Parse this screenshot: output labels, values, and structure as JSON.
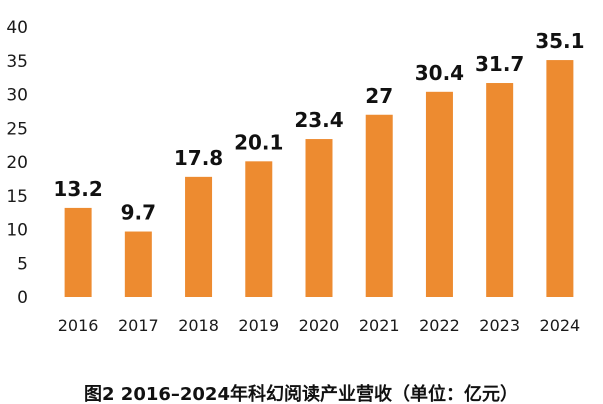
{
  "chart_data": {
    "type": "bar",
    "categories": [
      "2016",
      "2017",
      "2018",
      "2019",
      "2020",
      "2021",
      "2022",
      "2023",
      "2024"
    ],
    "values": [
      13.2,
      9.7,
      17.8,
      20.1,
      23.4,
      27,
      30.4,
      31.7,
      35.1
    ],
    "value_labels": [
      "13.2",
      "9.7",
      "17.8",
      "20.1",
      "23.4",
      "27",
      "30.4",
      "31.7",
      "35.1"
    ],
    "y_ticks": [
      "0",
      "5",
      "10",
      "15",
      "20",
      "25",
      "30",
      "35",
      "40"
    ],
    "ylim": [
      0,
      40
    ],
    "grid": false,
    "legend": "none",
    "bar_color": "#ED8B30",
    "caption": "图2 2016–2024年科幻阅读产业营收（单位：亿元）"
  }
}
